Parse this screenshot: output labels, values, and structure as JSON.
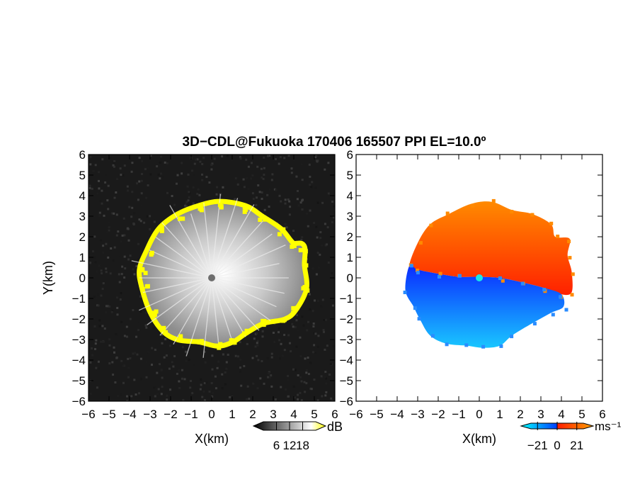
{
  "title": "3D−CDL@Fukuoka 170406 165507 PPI EL=10.0º",
  "chart_data": [
    {
      "type": "heatmap",
      "panel": "left",
      "variable": "reflectivity (SNR)",
      "xlabel": "X(km)",
      "ylabel": "Y(km)",
      "xlim": [
        -6,
        6
      ],
      "ylim": [
        -6,
        6
      ],
      "xticks": [
        "−6",
        "−5",
        "−4",
        "−3",
        "−2",
        "−1",
        "0",
        "1",
        "2",
        "3",
        "4",
        "5",
        "6"
      ],
      "yticks": [
        "6",
        "5",
        "4",
        "3",
        "2",
        "1",
        "0",
        "−1",
        "−2",
        "−3",
        "−4",
        "−5",
        "−6"
      ],
      "colorbar": {
        "unit": "dB",
        "tick_labels": [
          "6",
          "12",
          "18"
        ],
        "ticks": [
          6,
          12,
          18
        ],
        "range": [
          0,
          24
        ],
        "colors": [
          "#000000",
          "#ffffff",
          "#ffff00"
        ]
      },
      "background_color": "#1a1a1a",
      "echo_color": "#c8c8c8",
      "edge_color": "#ffff00",
      "echo_boundary_km": [
        [
          -3.4,
          0.4
        ],
        [
          -3.1,
          1.2
        ],
        [
          -2.5,
          2.3
        ],
        [
          -1.6,
          3.0
        ],
        [
          -0.6,
          3.4
        ],
        [
          0.4,
          3.6
        ],
        [
          1.6,
          3.4
        ],
        [
          2.4,
          2.9
        ],
        [
          3.3,
          2.3
        ],
        [
          3.9,
          1.6
        ],
        [
          4.4,
          1.5
        ],
        [
          4.4,
          0.6
        ],
        [
          4.5,
          -0.5
        ],
        [
          4.0,
          -1.5
        ],
        [
          3.5,
          -1.9
        ],
        [
          2.5,
          -2.1
        ],
        [
          1.6,
          -2.6
        ],
        [
          1.0,
          -3.0
        ],
        [
          0.3,
          -3.2
        ],
        [
          -0.6,
          -3.0
        ],
        [
          -1.6,
          -2.9
        ],
        [
          -2.3,
          -2.5
        ],
        [
          -2.9,
          -1.6
        ],
        [
          -3.3,
          -0.4
        ]
      ],
      "radar_center_km": [
        0,
        0
      ]
    },
    {
      "type": "heatmap",
      "panel": "right",
      "variable": "Doppler velocity",
      "xlabel": "X(km)",
      "xlim": [
        -6,
        6
      ],
      "ylim": [
        -6,
        6
      ],
      "xticks": [
        "−6",
        "−5",
        "−4",
        "−3",
        "−2",
        "−1",
        "0",
        "1",
        "2",
        "3",
        "4",
        "5",
        "6"
      ],
      "yticks": [
        "6",
        "5",
        "4",
        "3",
        "2",
        "1",
        "0",
        "−1",
        "−2",
        "−3",
        "−4",
        "−5",
        "−6"
      ],
      "colorbar": {
        "unit": "ms⁻¹",
        "tick_labels": [
          "−21",
          "0",
          "21"
        ],
        "ticks": [
          -21,
          0,
          21
        ],
        "range": [
          -28,
          28
        ],
        "colors": [
          "#00ffff",
          "#0050ff",
          "#ff2000",
          "#ffa000"
        ]
      },
      "background_color": "#ffffff",
      "positive_region_km": [
        [
          -3.4,
          0.6
        ],
        [
          -3.0,
          1.7
        ],
        [
          -2.4,
          2.6
        ],
        [
          -1.5,
          3.1
        ],
        [
          -0.4,
          3.6
        ],
        [
          0.6,
          3.7
        ],
        [
          1.6,
          3.3
        ],
        [
          2.6,
          3.1
        ],
        [
          3.5,
          2.6
        ],
        [
          3.7,
          2.0
        ],
        [
          4.4,
          1.9
        ],
        [
          4.3,
          1.1
        ],
        [
          4.5,
          0.3
        ],
        [
          4.5,
          -0.7
        ],
        [
          4.0,
          -0.8
        ],
        [
          3.2,
          -0.5
        ],
        [
          2.0,
          -0.2
        ],
        [
          1.0,
          0.0
        ],
        [
          0.0,
          0.05
        ],
        [
          -1.0,
          0.05
        ],
        [
          -2.0,
          0.2
        ],
        [
          -3.0,
          0.4
        ]
      ],
      "negative_region_km": [
        [
          -3.4,
          0.6
        ],
        [
          -3.0,
          0.4
        ],
        [
          -2.0,
          0.2
        ],
        [
          -1.0,
          0.05
        ],
        [
          0.0,
          0.05
        ],
        [
          1.0,
          0.0
        ],
        [
          2.0,
          -0.2
        ],
        [
          3.2,
          -0.5
        ],
        [
          4.0,
          -0.8
        ],
        [
          4.1,
          -1.4
        ],
        [
          3.5,
          -1.7
        ],
        [
          2.6,
          -2.2
        ],
        [
          1.6,
          -2.8
        ],
        [
          1.0,
          -3.3
        ],
        [
          0.2,
          -3.4
        ],
        [
          -0.6,
          -3.3
        ],
        [
          -1.6,
          -3.2
        ],
        [
          -2.4,
          -2.8
        ],
        [
          -2.9,
          -2.0
        ],
        [
          -3.2,
          -1.4
        ],
        [
          -3.6,
          -0.6
        ]
      ],
      "radar_center_km": [
        0,
        0
      ]
    }
  ]
}
